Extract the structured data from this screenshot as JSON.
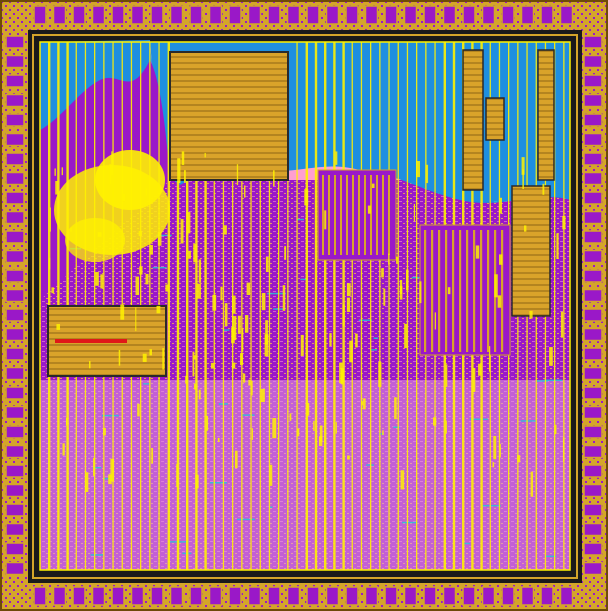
{
  "diagram": {
    "kind": "chip-layout",
    "labels": []
  },
  "colors": {
    "background": "#ffffff",
    "pad_ring": "#1a1a1a",
    "pad_metal": "#d4a52a",
    "core_background": "#ff9fd0",
    "sea_of_gates": "#9a18c8",
    "upper_sky": "#1e8fe0",
    "power_rail": "#fff200",
    "macro_block": "#d9a32a",
    "macro_outline": "#2a2a2a",
    "highlight_wire": "#e01818",
    "cyan_trace": "#21c8d8"
  },
  "icons": {
    "pad": "io-pad-icon",
    "macro": "memory-macro-icon",
    "logo": "yellow-cluster"
  }
}
